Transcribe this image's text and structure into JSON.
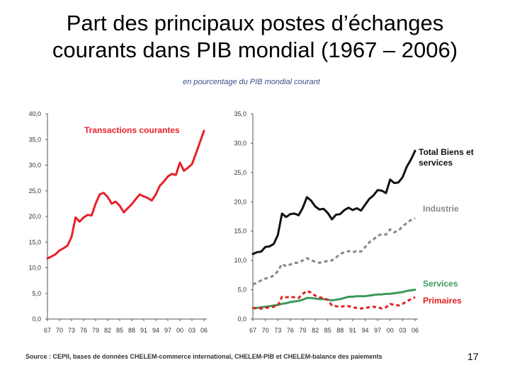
{
  "slide": {
    "title_line1": "Part des principaux postes d’échanges",
    "title_line2": "courants dans PIB mondial (1967 – 2006)",
    "subtitle": "en pourcentage du PIB mondial courant",
    "source": "Source : CEPII,  bases de données CHELEM-commerce international, CHELEM-PIB et CHELEM-balance des paiements",
    "page_number": "17"
  },
  "colors": {
    "transactions": "#e8202a",
    "total": "#111111",
    "industrie": "#888888",
    "services": "#3a9a5a",
    "primaires": "#e02020",
    "axis": "#555555"
  },
  "chart_data": [
    {
      "type": "line",
      "ylim": [
        0,
        40
      ],
      "yticks": [
        "0,0",
        "5,0",
        "10,0",
        "15,0",
        "20,0",
        "25,0",
        "30,0",
        "35,0",
        "40,0"
      ],
      "xticks": [
        "67",
        "70",
        "73",
        "76",
        "79",
        "82",
        "85",
        "88",
        "91",
        "94",
        "97",
        "00",
        "03",
        "06"
      ],
      "x": [
        1967,
        1968,
        1969,
        1970,
        1971,
        1972,
        1973,
        1974,
        1975,
        1976,
        1977,
        1978,
        1979,
        1980,
        1981,
        1982,
        1983,
        1984,
        1985,
        1986,
        1987,
        1988,
        1989,
        1990,
        1991,
        1992,
        1993,
        1994,
        1995,
        1996,
        1997,
        1998,
        1999,
        2000,
        2001,
        2002,
        2003,
        2004,
        2005,
        2006
      ],
      "series": [
        {
          "name": "Transactions courantes",
          "style": "solid",
          "values": [
            11.8,
            12.2,
            12.6,
            13.4,
            13.8,
            14.3,
            16.0,
            19.8,
            19.0,
            19.8,
            20.3,
            20.2,
            22.5,
            24.3,
            24.6,
            23.8,
            22.5,
            22.9,
            22.1,
            20.8,
            21.6,
            22.4,
            23.4,
            24.3,
            23.9,
            23.6,
            23.1,
            24.3,
            26.0,
            26.8,
            27.8,
            28.3,
            28.1,
            30.5,
            28.9,
            29.5,
            30.2,
            32.3,
            34.5,
            36.7
          ]
        }
      ]
    },
    {
      "type": "line",
      "ylim": [
        0,
        35
      ],
      "yticks": [
        "0,0",
        "5,0",
        "10,0",
        "15,0",
        "20,0",
        "25,0",
        "30,0",
        "35,0"
      ],
      "xticks": [
        "67",
        "70",
        "73",
        "76",
        "79",
        "82",
        "85",
        "88",
        "91",
        "94",
        "97",
        "00",
        "03",
        "06"
      ],
      "x": [
        1967,
        1968,
        1969,
        1970,
        1971,
        1972,
        1973,
        1974,
        1975,
        1976,
        1977,
        1978,
        1979,
        1980,
        1981,
        1982,
        1983,
        1984,
        1985,
        1986,
        1987,
        1988,
        1989,
        1990,
        1991,
        1992,
        1993,
        1994,
        1995,
        1996,
        1997,
        1998,
        1999,
        2000,
        2001,
        2002,
        2003,
        2004,
        2005,
        2006
      ],
      "series": [
        {
          "name": "Total  Biens et services",
          "style": "solid",
          "values": [
            11.1,
            11.4,
            11.5,
            12.3,
            12.4,
            12.8,
            14.3,
            18.0,
            17.4,
            17.9,
            18.0,
            17.7,
            19.0,
            20.8,
            20.2,
            19.2,
            18.7,
            18.8,
            18.1,
            17.0,
            17.8,
            17.9,
            18.6,
            19.0,
            18.6,
            18.9,
            18.5,
            19.5,
            20.5,
            21.1,
            22.0,
            21.9,
            21.5,
            23.8,
            23.2,
            23.3,
            24.2,
            26.0,
            27.2,
            28.7
          ]
        },
        {
          "name": "Industrie",
          "style": "dashed",
          "values": [
            5.9,
            6.2,
            6.6,
            6.9,
            7.1,
            7.4,
            8.2,
            9.4,
            9.0,
            9.3,
            9.6,
            9.6,
            10.0,
            10.4,
            10.0,
            9.8,
            9.6,
            9.8,
            9.9,
            10.0,
            10.5,
            11.1,
            11.4,
            11.6,
            11.4,
            11.6,
            11.5,
            12.3,
            13.1,
            13.6,
            14.2,
            14.5,
            14.4,
            15.3,
            14.8,
            15.1,
            15.8,
            16.4,
            16.9,
            17.2
          ]
        },
        {
          "name": "Services",
          "style": "solid",
          "values": [
            1.9,
            1.9,
            2.0,
            2.1,
            2.2,
            2.3,
            2.4,
            2.6,
            2.7,
            2.9,
            3.0,
            3.1,
            3.3,
            3.6,
            3.6,
            3.5,
            3.4,
            3.4,
            3.3,
            3.2,
            3.3,
            3.4,
            3.6,
            3.8,
            3.8,
            3.9,
            3.9,
            3.9,
            4.0,
            4.1,
            4.2,
            4.2,
            4.3,
            4.3,
            4.4,
            4.5,
            4.6,
            4.8,
            4.9,
            5.0
          ]
        },
        {
          "name": "Primaires",
          "style": "dashed",
          "values": [
            1.9,
            1.8,
            1.8,
            1.9,
            2.0,
            2.1,
            2.3,
            3.8,
            3.7,
            3.8,
            3.7,
            3.6,
            4.3,
            4.8,
            4.5,
            4.0,
            3.7,
            3.6,
            3.3,
            2.3,
            2.2,
            2.1,
            2.2,
            2.2,
            2.0,
            1.9,
            1.8,
            1.9,
            2.0,
            2.1,
            2.0,
            1.8,
            2.0,
            2.6,
            2.4,
            2.3,
            2.6,
            3.0,
            3.4,
            3.7
          ]
        }
      ]
    }
  ]
}
